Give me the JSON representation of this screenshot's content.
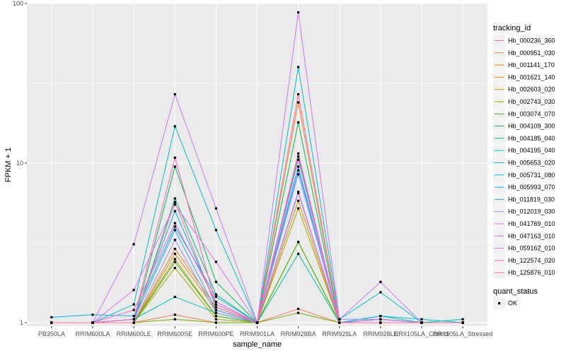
{
  "chart_data": {
    "type": "line",
    "xlabel": "sample_name",
    "ylabel": "FPKM + 1",
    "y_scale": "log10",
    "ylim": [
      0.95,
      100
    ],
    "y_ticks": [
      {
        "value": 1,
        "label": "1"
      },
      {
        "value": 10,
        "label": "10"
      },
      {
        "value": 100,
        "label": "100"
      }
    ],
    "grid": true,
    "panel_background": "#ebebeb",
    "categories": [
      "PB350LA",
      "RRIM600LA",
      "RRIM600LE",
      "RRIM600SE",
      "RRIM600PE",
      "RRIM901LA",
      "RRIM928BA",
      "RRIM928LA",
      "RRIM928LE",
      "RRII105LA_Control",
      "RRII105LA_Stressed"
    ],
    "legend_title": "tracking_id",
    "legend_placement": "right",
    "series": [
      {
        "name": "Hb_000236_360",
        "color": "#F8766D",
        "values": [
          1.0,
          1.0,
          1.0,
          1.12,
          1.0,
          1.0,
          1.22,
          1.0,
          1.0,
          1.0,
          1.0
        ]
      },
      {
        "name": "Hb_000951_030",
        "color": "#EA8331",
        "values": [
          1.0,
          1.0,
          1.0,
          2.9,
          1.25,
          1.0,
          24.0,
          1.0,
          1.0,
          1.0,
          1.0
        ]
      },
      {
        "name": "Hb_001141_170",
        "color": "#D89000",
        "values": [
          1.0,
          1.0,
          1.0,
          2.7,
          1.2,
          1.0,
          5.8,
          1.0,
          1.0,
          1.0,
          1.0
        ]
      },
      {
        "name": "Hb_001621_140",
        "color": "#C09B00",
        "values": [
          1.0,
          1.0,
          1.0,
          2.5,
          1.1,
          1.0,
          3.2,
          1.0,
          1.0,
          1.0,
          1.0
        ]
      },
      {
        "name": "Hb_002603_020",
        "color": "#A3A500",
        "values": [
          1.0,
          1.0,
          1.0,
          2.2,
          1.05,
          1.0,
          5.2,
          1.0,
          1.0,
          1.0,
          1.0
        ]
      },
      {
        "name": "Hb_002743_030",
        "color": "#7CAE00",
        "values": [
          1.0,
          1.0,
          1.0,
          1.05,
          1.0,
          1.0,
          1.15,
          1.0,
          1.0,
          1.0,
          1.0
        ]
      },
      {
        "name": "Hb_003074_070",
        "color": "#39B600",
        "values": [
          1.0,
          1.0,
          1.0,
          2.4,
          1.1,
          1.0,
          3.2,
          1.0,
          1.0,
          1.0,
          1.0
        ]
      },
      {
        "name": "Hb_004109_300",
        "color": "#00BB4E",
        "values": [
          1.0,
          1.0,
          1.0,
          9.5,
          1.8,
          1.0,
          18.0,
          1.0,
          1.05,
          1.0,
          1.0
        ]
      },
      {
        "name": "Hb_004185_040",
        "color": "#00BF7D",
        "values": [
          1.0,
          1.0,
          1.0,
          6.0,
          1.5,
          1.0,
          11.0,
          1.0,
          1.05,
          1.0,
          1.0
        ]
      },
      {
        "name": "Hb_004195_040",
        "color": "#00C1A3",
        "values": [
          1.0,
          1.0,
          1.05,
          1.45,
          1.15,
          1.0,
          2.7,
          1.0,
          1.1,
          1.0,
          1.05
        ]
      },
      {
        "name": "Hb_005653_020",
        "color": "#00BFC4",
        "values": [
          1.0,
          1.0,
          1.3,
          17.0,
          3.8,
          1.0,
          40.0,
          1.05,
          1.55,
          1.0,
          1.0
        ]
      },
      {
        "name": "Hb_005731_080",
        "color": "#00BAE0",
        "values": [
          1.08,
          1.12,
          1.1,
          4.0,
          1.45,
          1.0,
          9.5,
          1.0,
          1.1,
          1.05,
          1.0
        ]
      },
      {
        "name": "Hb_005993_070",
        "color": "#00B0F6",
        "values": [
          1.0,
          1.0,
          1.05,
          5.0,
          1.3,
          1.0,
          6.6,
          1.0,
          1.05,
          1.0,
          1.0
        ]
      },
      {
        "name": "Hb_011819_030",
        "color": "#35A2FF",
        "values": [
          1.0,
          1.0,
          1.05,
          3.8,
          1.2,
          1.0,
          9.0,
          1.0,
          1.05,
          1.0,
          1.0
        ]
      },
      {
        "name": "Hb_012019_030",
        "color": "#9590FF",
        "values": [
          1.0,
          1.0,
          1.0,
          3.3,
          1.15,
          1.0,
          8.5,
          1.05,
          1.05,
          1.0,
          1.0
        ]
      },
      {
        "name": "Hb_041769_010",
        "color": "#C77CFF",
        "values": [
          1.0,
          1.0,
          3.1,
          27.0,
          5.2,
          1.0,
          88.0,
          1.05,
          1.8,
          1.0,
          1.0
        ]
      },
      {
        "name": "Hb_047163_010",
        "color": "#E76BF3",
        "values": [
          1.0,
          1.0,
          1.6,
          5.5,
          2.4,
          1.0,
          10.5,
          1.0,
          1.05,
          1.0,
          1.0
        ]
      },
      {
        "name": "Hb_059162_010",
        "color": "#FA62DB",
        "values": [
          1.0,
          1.0,
          1.2,
          4.2,
          1.35,
          1.0,
          6.5,
          1.0,
          1.0,
          1.0,
          1.0
        ]
      },
      {
        "name": "Hb_122574_020",
        "color": "#FF62BC",
        "values": [
          1.0,
          1.0,
          1.05,
          10.8,
          1.3,
          1.0,
          11.5,
          1.0,
          1.0,
          1.0,
          1.0
        ]
      },
      {
        "name": "Hb_125876_010",
        "color": "#FF6C91",
        "values": [
          1.0,
          1.0,
          1.0,
          5.7,
          1.25,
          1.0,
          27.0,
          1.0,
          1.0,
          1.0,
          1.0
        ]
      }
    ],
    "shape_legend": {
      "title": "quant_status",
      "items": [
        {
          "label": "OK",
          "shape": "square"
        }
      ]
    }
  }
}
